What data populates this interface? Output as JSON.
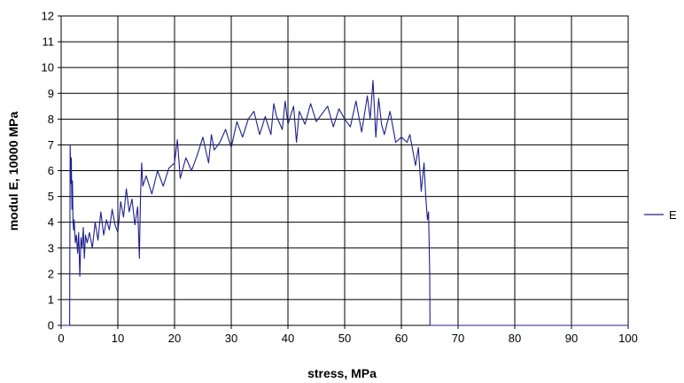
{
  "chart_data": {
    "type": "line",
    "xlabel": "stress, MPa",
    "ylabel": "modul E, 10000 MPa",
    "xlim": [
      0,
      100
    ],
    "ylim": [
      0,
      12
    ],
    "x_ticks": [
      0,
      10,
      20,
      30,
      40,
      50,
      60,
      70,
      80,
      90,
      100
    ],
    "y_ticks": [
      0,
      1,
      2,
      3,
      4,
      5,
      6,
      7,
      8,
      9,
      10,
      11,
      12
    ],
    "grid": true,
    "legend_position": "right",
    "series": [
      {
        "name": "E",
        "color": "#1f1f8f",
        "x": [
          0,
          1.5,
          1.6,
          1.7,
          1.8,
          1.9,
          2.0,
          2.1,
          2.2,
          2.3,
          2.5,
          2.7,
          2.9,
          3.1,
          3.3,
          3.5,
          3.7,
          3.9,
          4.1,
          4.3,
          4.6,
          5.0,
          5.5,
          6.0,
          6.5,
          7.0,
          7.5,
          8.0,
          8.5,
          9.0,
          9.5,
          10.0,
          10.5,
          11.0,
          11.5,
          12.0,
          12.5,
          13.0,
          13.5,
          13.8,
          14.0,
          14.2,
          14.4,
          15.0,
          16.0,
          17.0,
          18.0,
          19.0,
          20.0,
          20.5,
          21.0,
          22.0,
          23.0,
          24.0,
          25.0,
          26.0,
          26.5,
          27.0,
          28.0,
          29.0,
          30.0,
          31.0,
          32.0,
          33.0,
          34.0,
          35.0,
          36.0,
          37.0,
          37.5,
          38.0,
          39.0,
          39.5,
          40.0,
          41.0,
          41.5,
          42.0,
          43.0,
          44.0,
          45.0,
          46.0,
          47.0,
          48.0,
          49.0,
          50.0,
          51.0,
          52.0,
          53.0,
          54.0,
          54.5,
          55.0,
          55.5,
          56.0,
          56.5,
          57.0,
          58.0,
          59.0,
          60.0,
          61.0,
          61.5,
          62.0,
          62.5,
          63.0,
          63.5,
          64.0,
          64.3,
          64.6,
          64.8,
          65.0,
          65.05,
          100
        ],
        "values": [
          0,
          0,
          7.0,
          5.5,
          6.5,
          4.5,
          5.6,
          4.0,
          3.7,
          4.1,
          3.2,
          3.5,
          2.8,
          3.6,
          1.9,
          3.4,
          3.0,
          3.8,
          2.6,
          3.5,
          3.2,
          3.6,
          3.0,
          4.0,
          3.3,
          4.4,
          3.5,
          4.1,
          3.7,
          4.5,
          3.9,
          3.6,
          4.8,
          4.2,
          5.3,
          4.4,
          4.9,
          3.9,
          4.6,
          2.6,
          5.0,
          6.3,
          5.4,
          5.8,
          5.1,
          6.0,
          5.4,
          6.1,
          6.3,
          7.2,
          5.7,
          6.5,
          6.0,
          6.6,
          7.3,
          6.3,
          7.4,
          6.8,
          7.1,
          7.6,
          6.9,
          7.9,
          7.3,
          8.0,
          8.3,
          7.4,
          8.1,
          7.4,
          8.6,
          8.1,
          7.6,
          8.7,
          7.8,
          8.5,
          7.1,
          8.3,
          7.8,
          8.6,
          7.9,
          8.2,
          8.5,
          7.7,
          8.4,
          8.0,
          7.7,
          8.7,
          7.5,
          8.9,
          8.0,
          9.5,
          7.3,
          8.8,
          7.8,
          7.4,
          8.3,
          7.1,
          7.3,
          7.1,
          7.4,
          6.8,
          6.2,
          6.9,
          5.2,
          6.3,
          5.0,
          4.1,
          4.4,
          2.0,
          0,
          0
        ]
      }
    ]
  }
}
